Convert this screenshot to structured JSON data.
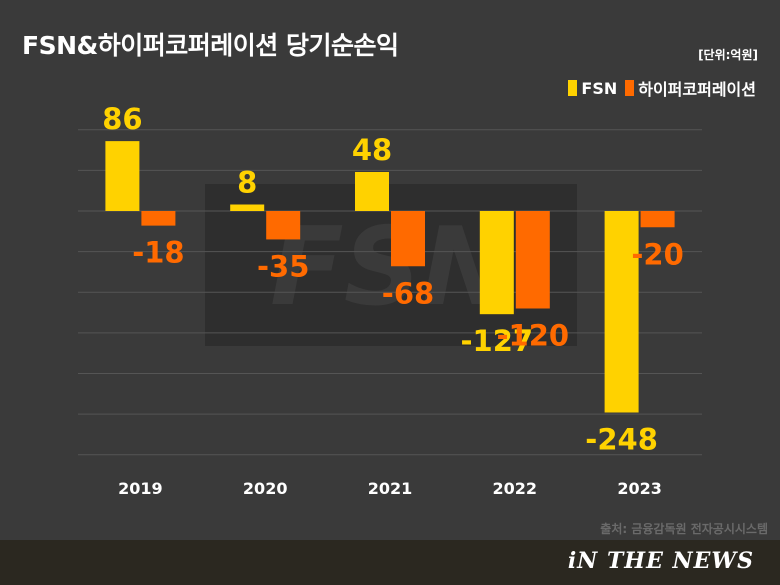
{
  "title": "FSN&하이퍼코퍼레이션 당기순손익",
  "unit": "[단위:억원]",
  "source": "출처: 금융감독원 전자공시시스템",
  "brand": "iN THE NEWS",
  "watermark": "FSN",
  "colors": {
    "fsn": "#ffd200",
    "hyper": "#ff6a00",
    "background": "#3a3a3a",
    "gridline": "#555555"
  },
  "chart_data": {
    "type": "bar",
    "categories": [
      "2019",
      "2020",
      "2021",
      "2022",
      "2023"
    ],
    "series": [
      {
        "name": "FSN",
        "values": [
          86,
          8,
          48,
          -127,
          -248
        ]
      },
      {
        "name": "하이퍼코퍼레이션",
        "values": [
          -18,
          -35,
          -68,
          -120,
          -20
        ]
      }
    ],
    "title": "FSN&하이퍼코퍼레이션 당기순손익",
    "xlabel": "",
    "ylabel": "",
    "ylim": [
      -300,
      100
    ],
    "grid": true,
    "legend": "top-right"
  }
}
